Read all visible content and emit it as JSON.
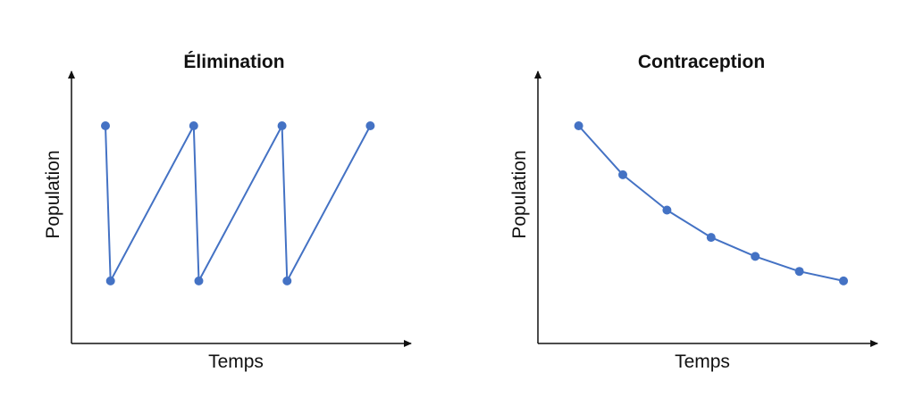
{
  "chart_data": [
    {
      "type": "line",
      "title": "Élimination",
      "xlabel": "Temps",
      "ylabel": "Population",
      "xlim": [
        0,
        10
      ],
      "ylim": [
        0,
        10
      ],
      "grid": false,
      "color": "#4472C4",
      "points": [
        {
          "x": 1.0,
          "y": 8.0
        },
        {
          "x": 1.15,
          "y": 2.3
        },
        {
          "x": 3.6,
          "y": 8.0
        },
        {
          "x": 3.75,
          "y": 2.3
        },
        {
          "x": 6.2,
          "y": 8.0
        },
        {
          "x": 6.35,
          "y": 2.3
        },
        {
          "x": 8.8,
          "y": 8.0
        }
      ]
    },
    {
      "type": "line",
      "title": "Contraception",
      "xlabel": "Temps",
      "ylabel": "Population",
      "xlim": [
        0,
        10
      ],
      "ylim": [
        0,
        10
      ],
      "grid": false,
      "color": "#4472C4",
      "points": [
        {
          "x": 1.2,
          "y": 8.0
        },
        {
          "x": 2.5,
          "y": 6.2
        },
        {
          "x": 3.8,
          "y": 4.9
        },
        {
          "x": 5.1,
          "y": 3.9
        },
        {
          "x": 6.4,
          "y": 3.2
        },
        {
          "x": 7.7,
          "y": 2.65
        },
        {
          "x": 9.0,
          "y": 2.3
        }
      ]
    }
  ]
}
